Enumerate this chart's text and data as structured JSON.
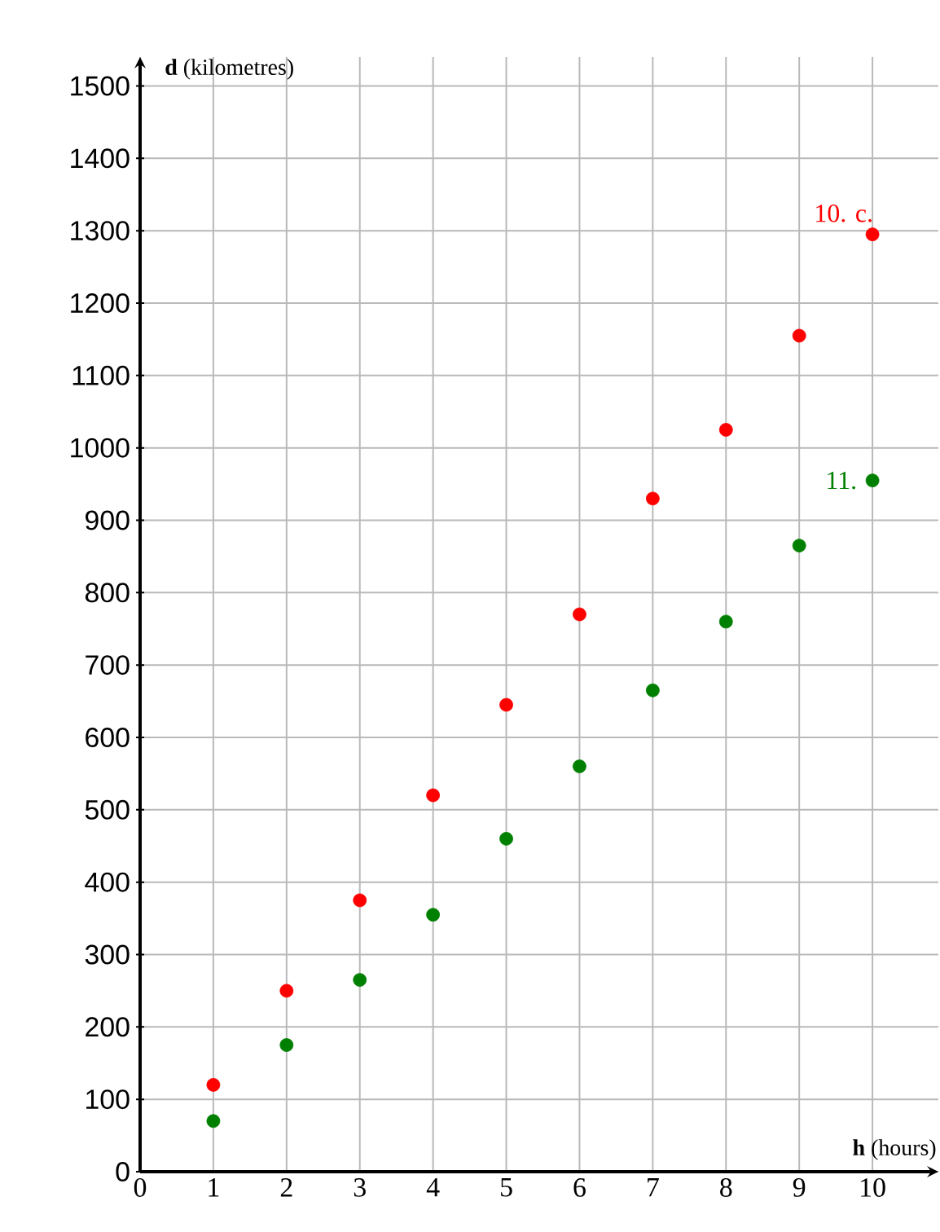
{
  "chart_data": {
    "type": "scatter",
    "xlabel": "**h** (hours)",
    "ylabel": "**d** (kilometres)",
    "x": [
      1,
      2,
      3,
      4,
      5,
      6,
      7,
      8,
      9,
      10
    ],
    "series": [
      {
        "name": "10. c.",
        "color": "#ff0000",
        "values": [
          120,
          250,
          375,
          520,
          645,
          770,
          930,
          1025,
          1155,
          1295
        ]
      },
      {
        "name": "11.",
        "color": "#008000",
        "values": [
          70,
          175,
          265,
          355,
          460,
          560,
          665,
          760,
          865,
          955
        ]
      }
    ],
    "xlim": [
      0,
      10.9
    ],
    "ylim": [
      0,
      1540
    ],
    "xticks": [
      0,
      1,
      2,
      3,
      4,
      5,
      6,
      7,
      8,
      9,
      10
    ],
    "yticks": [
      0,
      100,
      200,
      300,
      400,
      500,
      600,
      700,
      800,
      900,
      1000,
      1100,
      1200,
      1300,
      1400,
      1500
    ],
    "grid": true,
    "marker": "circle",
    "legend": false
  }
}
